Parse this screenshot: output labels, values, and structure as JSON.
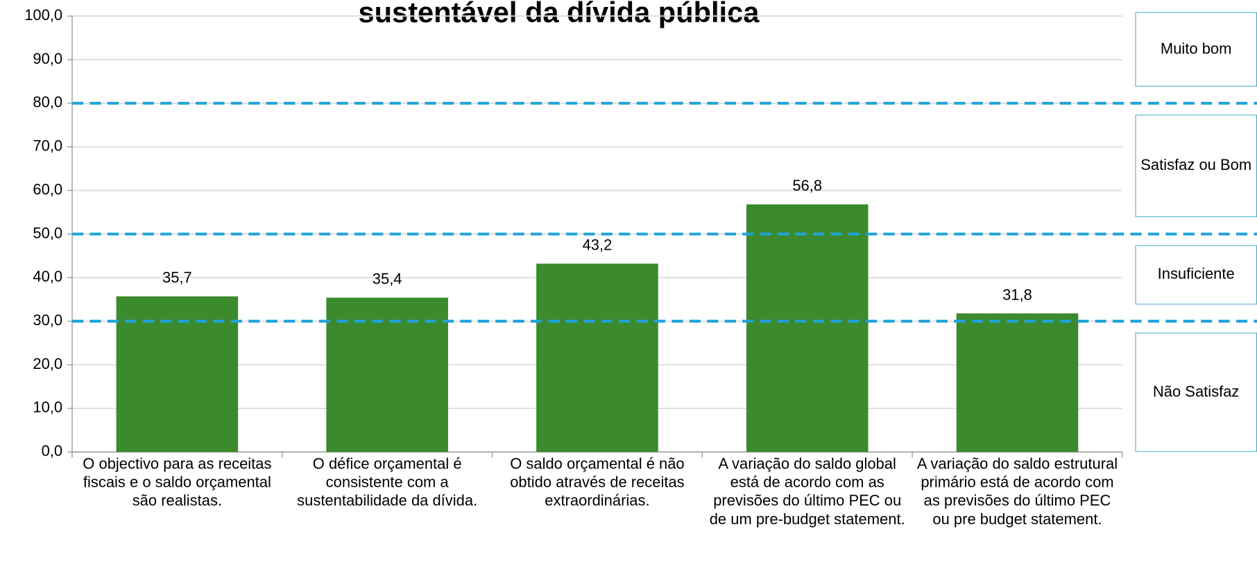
{
  "chart_data": {
    "type": "bar",
    "title": "sustentável da dívida pública",
    "categories": [
      "O objectivo para as receitas fiscais e o saldo orçamental são realistas.",
      "O défice orçamental é consistente com a sustentabilidade da dívida.",
      "O saldo orçamental é não obtido através de receitas extraordinárias.",
      "A variação do saldo global está de acordo com as previsões do último PEC ou de um pre-budget statement.",
      "A variação do saldo estrutural primário está de acordo com as previsões do último PEC ou pre budget statement."
    ],
    "values": [
      35.7,
      35.4,
      43.2,
      56.8,
      31.8
    ],
    "value_labels": [
      "35,7",
      "35,4",
      "43,2",
      "56,8",
      "31,8"
    ],
    "color": "#3c8a2e",
    "ylim": [
      0,
      100
    ],
    "yticks": [
      {
        "value": 0,
        "label": "0,0"
      },
      {
        "value": 10,
        "label": "10,0"
      },
      {
        "value": 20,
        "label": "20,0"
      },
      {
        "value": 30,
        "label": "30,0"
      },
      {
        "value": 40,
        "label": "40,0"
      },
      {
        "value": 50,
        "label": "50,0"
      },
      {
        "value": 60,
        "label": "60,0"
      },
      {
        "value": 70,
        "label": "70,0"
      },
      {
        "value": 80,
        "label": "80,0"
      },
      {
        "value": 90,
        "label": "90,0"
      },
      {
        "value": 100,
        "label": "100,0"
      }
    ],
    "grid": true,
    "thresholds": [
      80,
      50,
      30
    ],
    "threshold_color": "#1fa3d9",
    "rating_labels": [
      "Muito bom",
      "Satisfaz ou Bom",
      "Insuficiente",
      "Não Satisfaz"
    ]
  }
}
